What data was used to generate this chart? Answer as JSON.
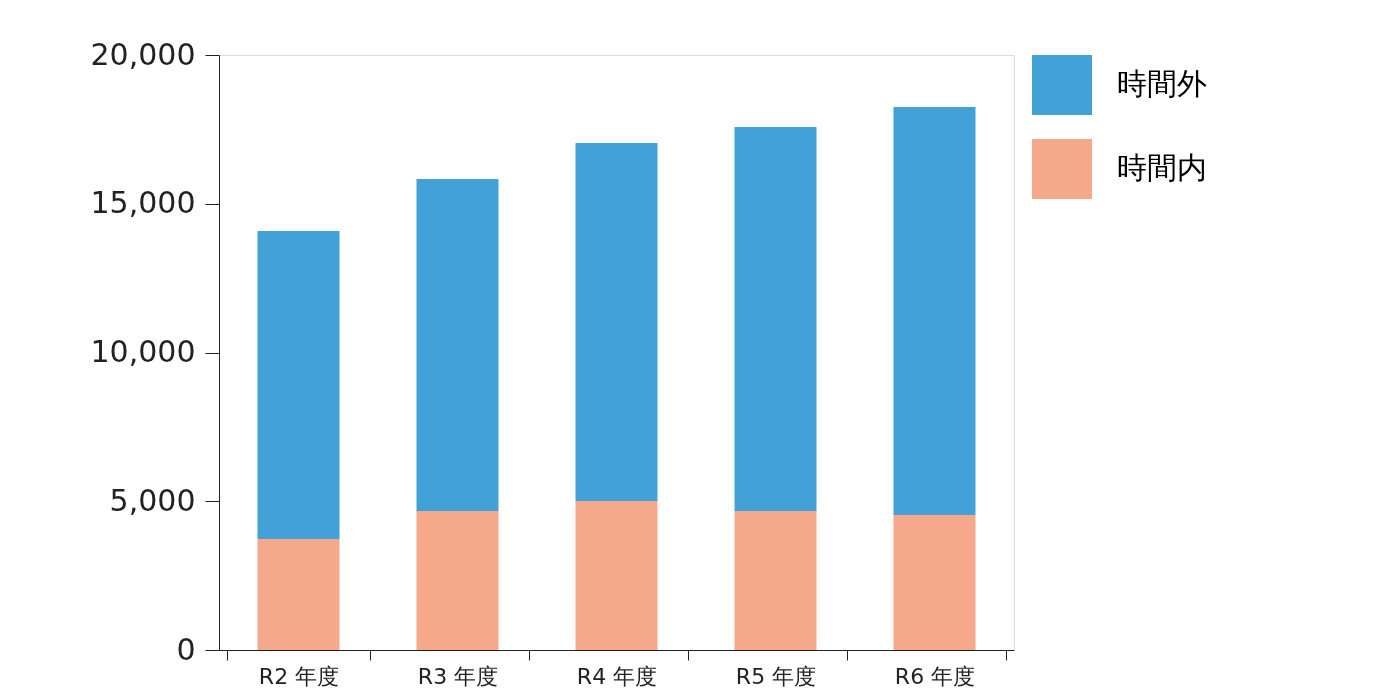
{
  "chart_data": {
    "type": "bar",
    "stacked": true,
    "categories": [
      "R2 年度",
      "R3 年度",
      "R4 年度",
      "R5 年度",
      "R6 年度"
    ],
    "series": [
      {
        "name": "時間内",
        "color": "#f5a88a",
        "values": [
          3730,
          4670,
          5010,
          4670,
          4540
        ]
      },
      {
        "name": "時間外",
        "color": "#42a2d8",
        "values": [
          10350,
          11160,
          12030,
          12910,
          13710
        ]
      }
    ],
    "ylim": [
      0,
      20000
    ],
    "yticks": [
      0,
      {
        "value": 5000,
        "label": "5,000"
      },
      {
        "value": 10000,
        "label": "10,000"
      },
      {
        "value": 15000,
        "label": "15,000"
      },
      {
        "value": 20000,
        "label": "20,000"
      }
    ],
    "grid": false,
    "legend": "top right"
  }
}
